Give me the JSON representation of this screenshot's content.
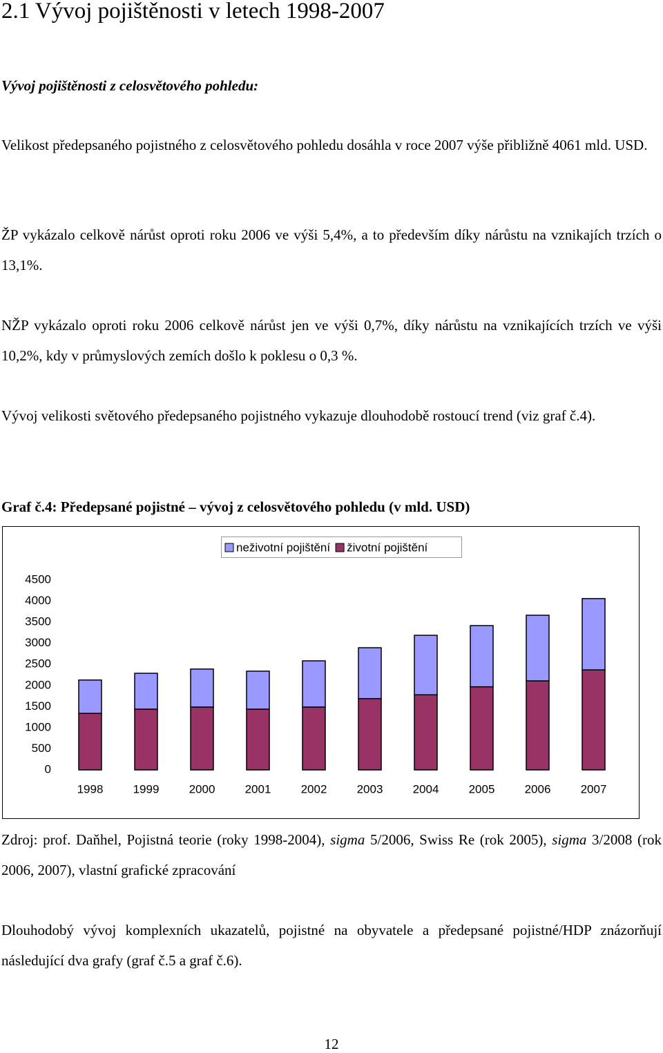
{
  "heading": "2.1 Vývoj pojištěnosti v letech 1998-2007",
  "subheading": "Vývoj pojištěnosti z celosvětového pohledu:",
  "paragraphs": [
    "Velikost předepsaného pojistného z celosvětového pohledu dosáhla v roce 2007 výše přibližně 4061 mld. USD.",
    " ŽP vykázalo celkově nárůst oproti roku 2006 ve výši 5,4%, a to především díky nárůstu na vznikajích trzích o 13,1%.",
    "NŽP vykázalo oproti roku 2006 celkově nárůst jen ve výši 0,7%, díky nárůstu na vznikajících trzích ve výši 10,2%, kdy v průmyslových zemích došlo k poklesu o 0,3 %.",
    "Vývoj velikosti světového předepsaného pojistného vykazuje dlouhodobě rostoucí trend (viz graf č.4)."
  ],
  "chart_caption": "Graf č.4: Předepsané pojistné – vývoj z celosvětového pohledu (v mld. USD)",
  "chart_data": {
    "type": "stacked_bar",
    "categories": [
      "1998",
      "1999",
      "2000",
      "2001",
      "2002",
      "2003",
      "2004",
      "2005",
      "2006",
      "2007"
    ],
    "series": [
      {
        "name": "neživotní pojištění",
        "color": "#9999ff",
        "values": [
          790,
          850,
          900,
          900,
          1095,
          1205,
          1410,
          1450,
          1555,
          1690
        ]
      },
      {
        "name": "životní pojištění",
        "color": "#993366",
        "values": [
          1340,
          1440,
          1490,
          1440,
          1490,
          1690,
          1780,
          1970,
          2110,
          2370
        ]
      }
    ],
    "ylim": [
      0,
      4500
    ],
    "yticks": [
      0,
      500,
      1000,
      1500,
      2000,
      2500,
      3000,
      3500,
      4000,
      4500
    ],
    "grid": false,
    "legend": "top"
  },
  "source": [
    "Zdroj: prof. Daňhel, Pojistná teorie (roky 1998-2004), ",
    "sigma",
    " 5/2006, Swiss Re (rok 2005), ",
    "sigma",
    " 3/2008 (rok 2006, 2007), vlastní grafické zpracování"
  ],
  "closing": "Dlouhodobý vývoj komplexních ukazatelů, pojistné na obyvatele a předepsané pojistné/HDP znázorňují následující dva grafy (graf č.5 a graf č.6).",
  "page_number": "12"
}
